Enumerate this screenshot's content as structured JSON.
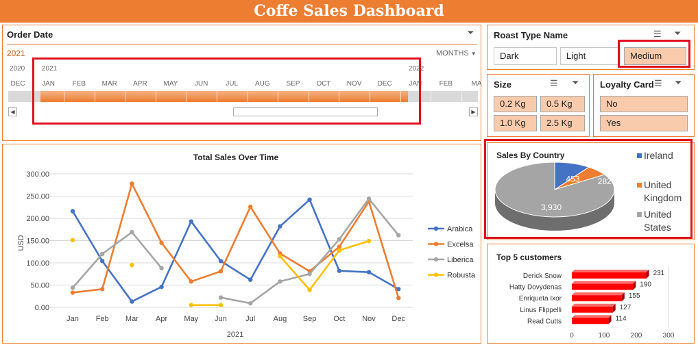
{
  "title": "Coffe Sales Dashboard",
  "order_date": {
    "header": "Order Date",
    "selected_year": "2021",
    "level": "MONTHS",
    "years": [
      "2020",
      "2021",
      "2022"
    ],
    "months": [
      "DEC",
      "JAN",
      "FEB",
      "MAR",
      "APR",
      "MAY",
      "JUN",
      "JUL",
      "AUG",
      "SEP",
      "OCT",
      "NOV",
      "DEC",
      "JAN",
      "FEB",
      "MA"
    ]
  },
  "roast": {
    "header": "Roast Type Name",
    "items": [
      "Dark",
      "Light",
      "Medium"
    ],
    "selected": "Medium"
  },
  "size": {
    "header": "Size",
    "items": [
      "0.2 Kg",
      "0.5 Kg",
      "1.0 Kg",
      "2.5 Kg"
    ]
  },
  "loyalty": {
    "header": "Loyalty Card",
    "items": [
      "No",
      "Yes"
    ]
  },
  "line_chart": {
    "title": "Total Sales Over Time",
    "ylabel": "USD",
    "xlabel": "2021",
    "yticks": [
      "300.00",
      "250.00",
      "200.00",
      "150.00",
      "100.00",
      "50.00",
      "0.00"
    ]
  },
  "country_chart": {
    "title": "Sales By Country",
    "labels": [
      "453",
      "282",
      "3,930"
    ],
    "legend": [
      "Ireland",
      "United Kingdom",
      "United States"
    ]
  },
  "customers_chart": {
    "title": "Top 5 customers",
    "names": [
      "Derick Snow",
      "Hatty Dovydenas",
      "Enriqueta Ixor",
      "Linus Flippelli",
      "Read Cutts"
    ],
    "values": [
      "231",
      "190",
      "155",
      "127",
      "114"
    ],
    "ticks": [
      "0",
      "100",
      "200",
      "300"
    ]
  },
  "colors": {
    "accent": "#ed7d31",
    "selected": "#f8cbad",
    "arabica": "#4472c4",
    "excelsa": "#ed7d31",
    "liberica": "#a5a5a5",
    "robusta": "#ffc000",
    "bar": "#ff0000",
    "highlight": "#e0101e"
  },
  "chart_data": [
    {
      "type": "line",
      "title": "Total Sales Over Time",
      "xlabel": "2021",
      "ylabel": "USD",
      "categories": [
        "Jan",
        "Feb",
        "Mar",
        "Apr",
        "May",
        "Jun",
        "Jul",
        "Aug",
        "Sep",
        "Oct",
        "Nov",
        "Dec"
      ],
      "ylim": [
        0,
        300
      ],
      "series": [
        {
          "name": "Arabica",
          "color": "#4472c4",
          "values": [
            216,
            104,
            13,
            46,
            193,
            104,
            62,
            182,
            242,
            82,
            79,
            41
          ]
        },
        {
          "name": "Excelsa",
          "color": "#ed7d31",
          "values": [
            33,
            41,
            278,
            145,
            58,
            81,
            226,
            121,
            81,
            136,
            238,
            21
          ]
        },
        {
          "name": "Liberica",
          "color": "#a5a5a5",
          "values": [
            44,
            120,
            169,
            88,
            null,
            22,
            9,
            58,
            75,
            153,
            244,
            162
          ]
        },
        {
          "name": "Robusta",
          "color": "#ffc000",
          "values": [
            151,
            null,
            95,
            null,
            5,
            5,
            null,
            115,
            39,
            128,
            149,
            null
          ]
        }
      ],
      "legend": "right"
    },
    {
      "type": "pie",
      "title": "Sales By Country",
      "categories": [
        "Ireland",
        "United Kingdom",
        "United States"
      ],
      "values": [
        453,
        282,
        3930
      ],
      "colors": [
        "#4472c4",
        "#ed7d31",
        "#a5a5a5"
      ],
      "legend": "right"
    },
    {
      "type": "bar",
      "title": "Top 5 customers",
      "categories": [
        "Derick Snow",
        "Hatty Dovydenas",
        "Enriqueta Ixor",
        "Linus Flippelli",
        "Read Cutts"
      ],
      "values": [
        231,
        190,
        155,
        127,
        114
      ],
      "xlim": [
        0,
        300
      ],
      "orientation": "horizontal"
    }
  ]
}
